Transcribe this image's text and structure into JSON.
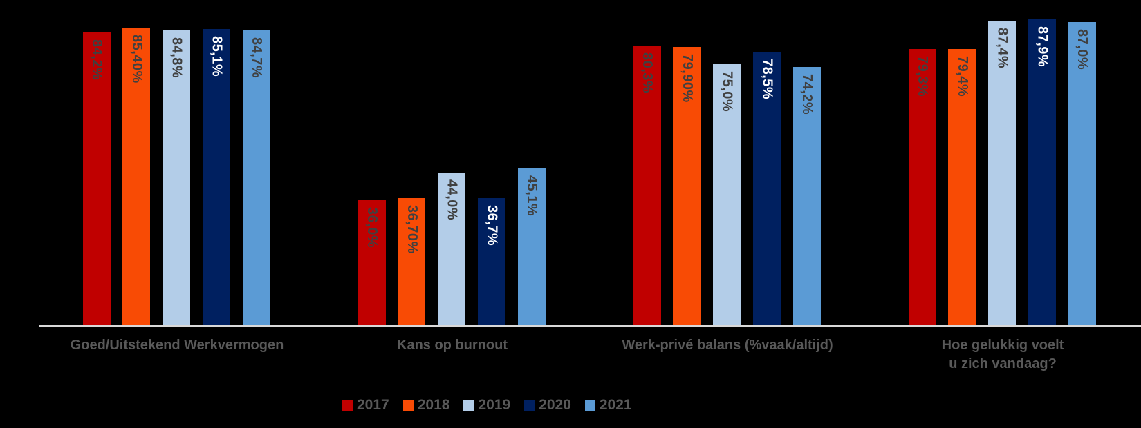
{
  "chart_data": {
    "type": "bar",
    "title": "",
    "xlabel": "",
    "ylabel": "",
    "ylim": [
      0,
      93
    ],
    "grid": false,
    "legend_position": "bottom",
    "background_color": "#000000",
    "axis_line_color": "#D9D9D9",
    "category_label_color": "#595959",
    "legend_text_color": "#595959",
    "data_label_rotation": "rotated-90-clockwise",
    "categories": [
      "Goed/Uitstekend Werkvermogen",
      "Kans op burnout",
      "Werk-privé balans (%vaak/altijd)",
      "Hoe gelukkig voelt\nu zich vandaag?"
    ],
    "series": [
      {
        "name": "2017",
        "color": "#C00000",
        "label_color": "#404040",
        "values": [
          84.2,
          36.0,
          80.3,
          79.3
        ],
        "data_labels": [
          "84,2%",
          "36,0%",
          "80,3%",
          "79,3%"
        ]
      },
      {
        "name": "2018",
        "color": "#F84B05",
        "label_color": "#404040",
        "values": [
          85.4,
          36.7,
          79.9,
          79.4
        ],
        "data_labels": [
          "85,40%",
          "36,70%",
          "79,90%",
          "79,4%"
        ]
      },
      {
        "name": "2019",
        "color": "#B3CDE8",
        "label_color": "#404040",
        "values": [
          84.8,
          44.0,
          75.0,
          87.4
        ],
        "data_labels": [
          "84,8%",
          "44,0%",
          "75,0%",
          "87,4%"
        ]
      },
      {
        "name": "2020",
        "color": "#002060",
        "label_color": "#FFFFFF",
        "values": [
          85.1,
          36.7,
          78.5,
          87.9
        ],
        "data_labels": [
          "85,1%",
          "36,7%",
          "78,5%",
          "87,9%"
        ]
      },
      {
        "name": "2021",
        "color": "#5B9BD5",
        "label_color": "#404040",
        "values": [
          84.7,
          45.1,
          74.2,
          87.0
        ],
        "data_labels": [
          "84,7%",
          "45,1%",
          "74,2%",
          "87,0%"
        ]
      }
    ],
    "legend_entries": [
      "2017",
      "2018",
      "2019",
      "2020",
      "2021"
    ]
  }
}
